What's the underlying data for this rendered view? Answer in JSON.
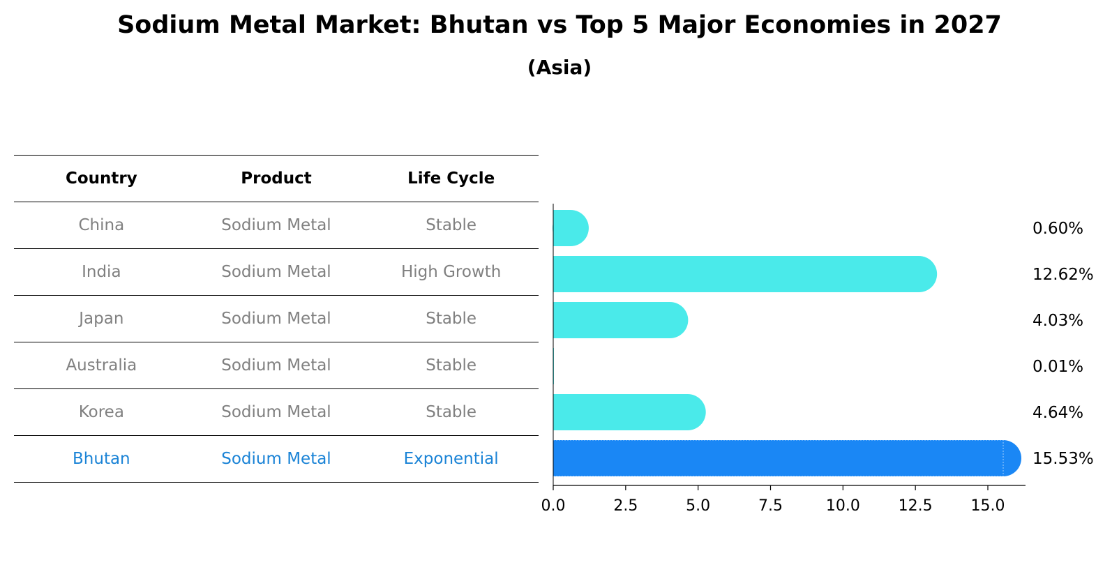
{
  "title": "Sodium Metal Market: Bhutan vs Top 5 Major Economies in 2027",
  "subtitle": "(Asia)",
  "table": {
    "headers": [
      "Country",
      "Product",
      "Life Cycle"
    ],
    "rows": [
      [
        "China",
        "Sodium Metal",
        "Stable"
      ],
      [
        "India",
        "Sodium Metal",
        "High Growth"
      ],
      [
        "Japan",
        "Sodium Metal",
        "Stable"
      ],
      [
        "Australia",
        "Sodium Metal",
        "Stable"
      ],
      [
        "Korea",
        "Sodium Metal",
        "Stable"
      ],
      [
        "Bhutan",
        "Sodium Metal",
        "Exponential"
      ]
    ],
    "highlight_row": 5
  },
  "colors": {
    "bar": "#4aeaea",
    "highlight_bar": "#1a87f5",
    "highlight_text": "#1a83d6",
    "muted_text": "#808080"
  },
  "chart_data": {
    "type": "bar",
    "orientation": "horizontal",
    "categories": [
      "China",
      "India",
      "Japan",
      "Australia",
      "Korea",
      "Bhutan"
    ],
    "values": [
      0.6,
      12.62,
      4.03,
      0.01,
      4.64,
      15.53
    ],
    "value_labels": [
      "0.60%",
      "12.62%",
      "4.03%",
      "0.01%",
      "4.64%",
      "15.53%"
    ],
    "highlight_index": 5,
    "xlim": [
      0,
      16.3
    ],
    "xticks": [
      0.0,
      2.5,
      5.0,
      7.5,
      10.0,
      12.5,
      15.0
    ],
    "xtick_labels": [
      "0.0",
      "2.5",
      "5.0",
      "7.5",
      "10.0",
      "12.5",
      "15.0"
    ],
    "xlabel": "",
    "ylabel": "",
    "grid": false
  }
}
